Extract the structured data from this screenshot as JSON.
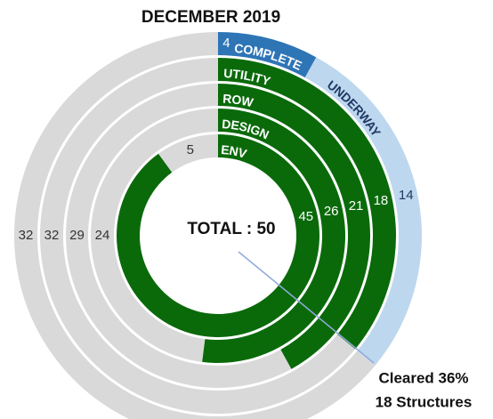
{
  "chart_data": {
    "type": "radial-bar",
    "title": "DECEMBER 2019",
    "center_label": "TOTAL : 50",
    "annotation": [
      "Cleared 36%",
      "18 Structures"
    ],
    "rings": [
      {
        "segments": [
          {
            "name": "ENV",
            "value": 45,
            "color": "#0a6a0a",
            "text_color": "#ffffff"
          },
          {
            "value": 5,
            "color": "#d9d9d9",
            "text_color": "#333333"
          }
        ]
      },
      {
        "segments": [
          {
            "name": "DESIGN",
            "value": 26,
            "color": "#0a6a0a",
            "text_color": "#ffffff"
          },
          {
            "value": 24,
            "color": "#d9d9d9",
            "text_color": "#333333"
          }
        ]
      },
      {
        "segments": [
          {
            "name": "ROW",
            "value": 21,
            "color": "#0a6a0a",
            "text_color": "#ffffff"
          },
          {
            "value": 29,
            "color": "#d9d9d9",
            "text_color": "#333333"
          }
        ]
      },
      {
        "segments": [
          {
            "name": "UTILITY",
            "value": 18,
            "color": "#0a6a0a",
            "text_color": "#ffffff"
          },
          {
            "value": 32,
            "color": "#d9d9d9",
            "text_color": "#333333"
          }
        ]
      },
      {
        "segments": [
          {
            "name": "COMPLETE",
            "value": 4,
            "color": "#2e75b6",
            "text_color": "#ffffff"
          },
          {
            "name": "UNDERWAY",
            "value": 14,
            "color": "#bdd7ee",
            "text_color": "#1f3864"
          },
          {
            "value": 32,
            "color": "#d9d9d9",
            "text_color": "#333333"
          }
        ]
      }
    ]
  }
}
